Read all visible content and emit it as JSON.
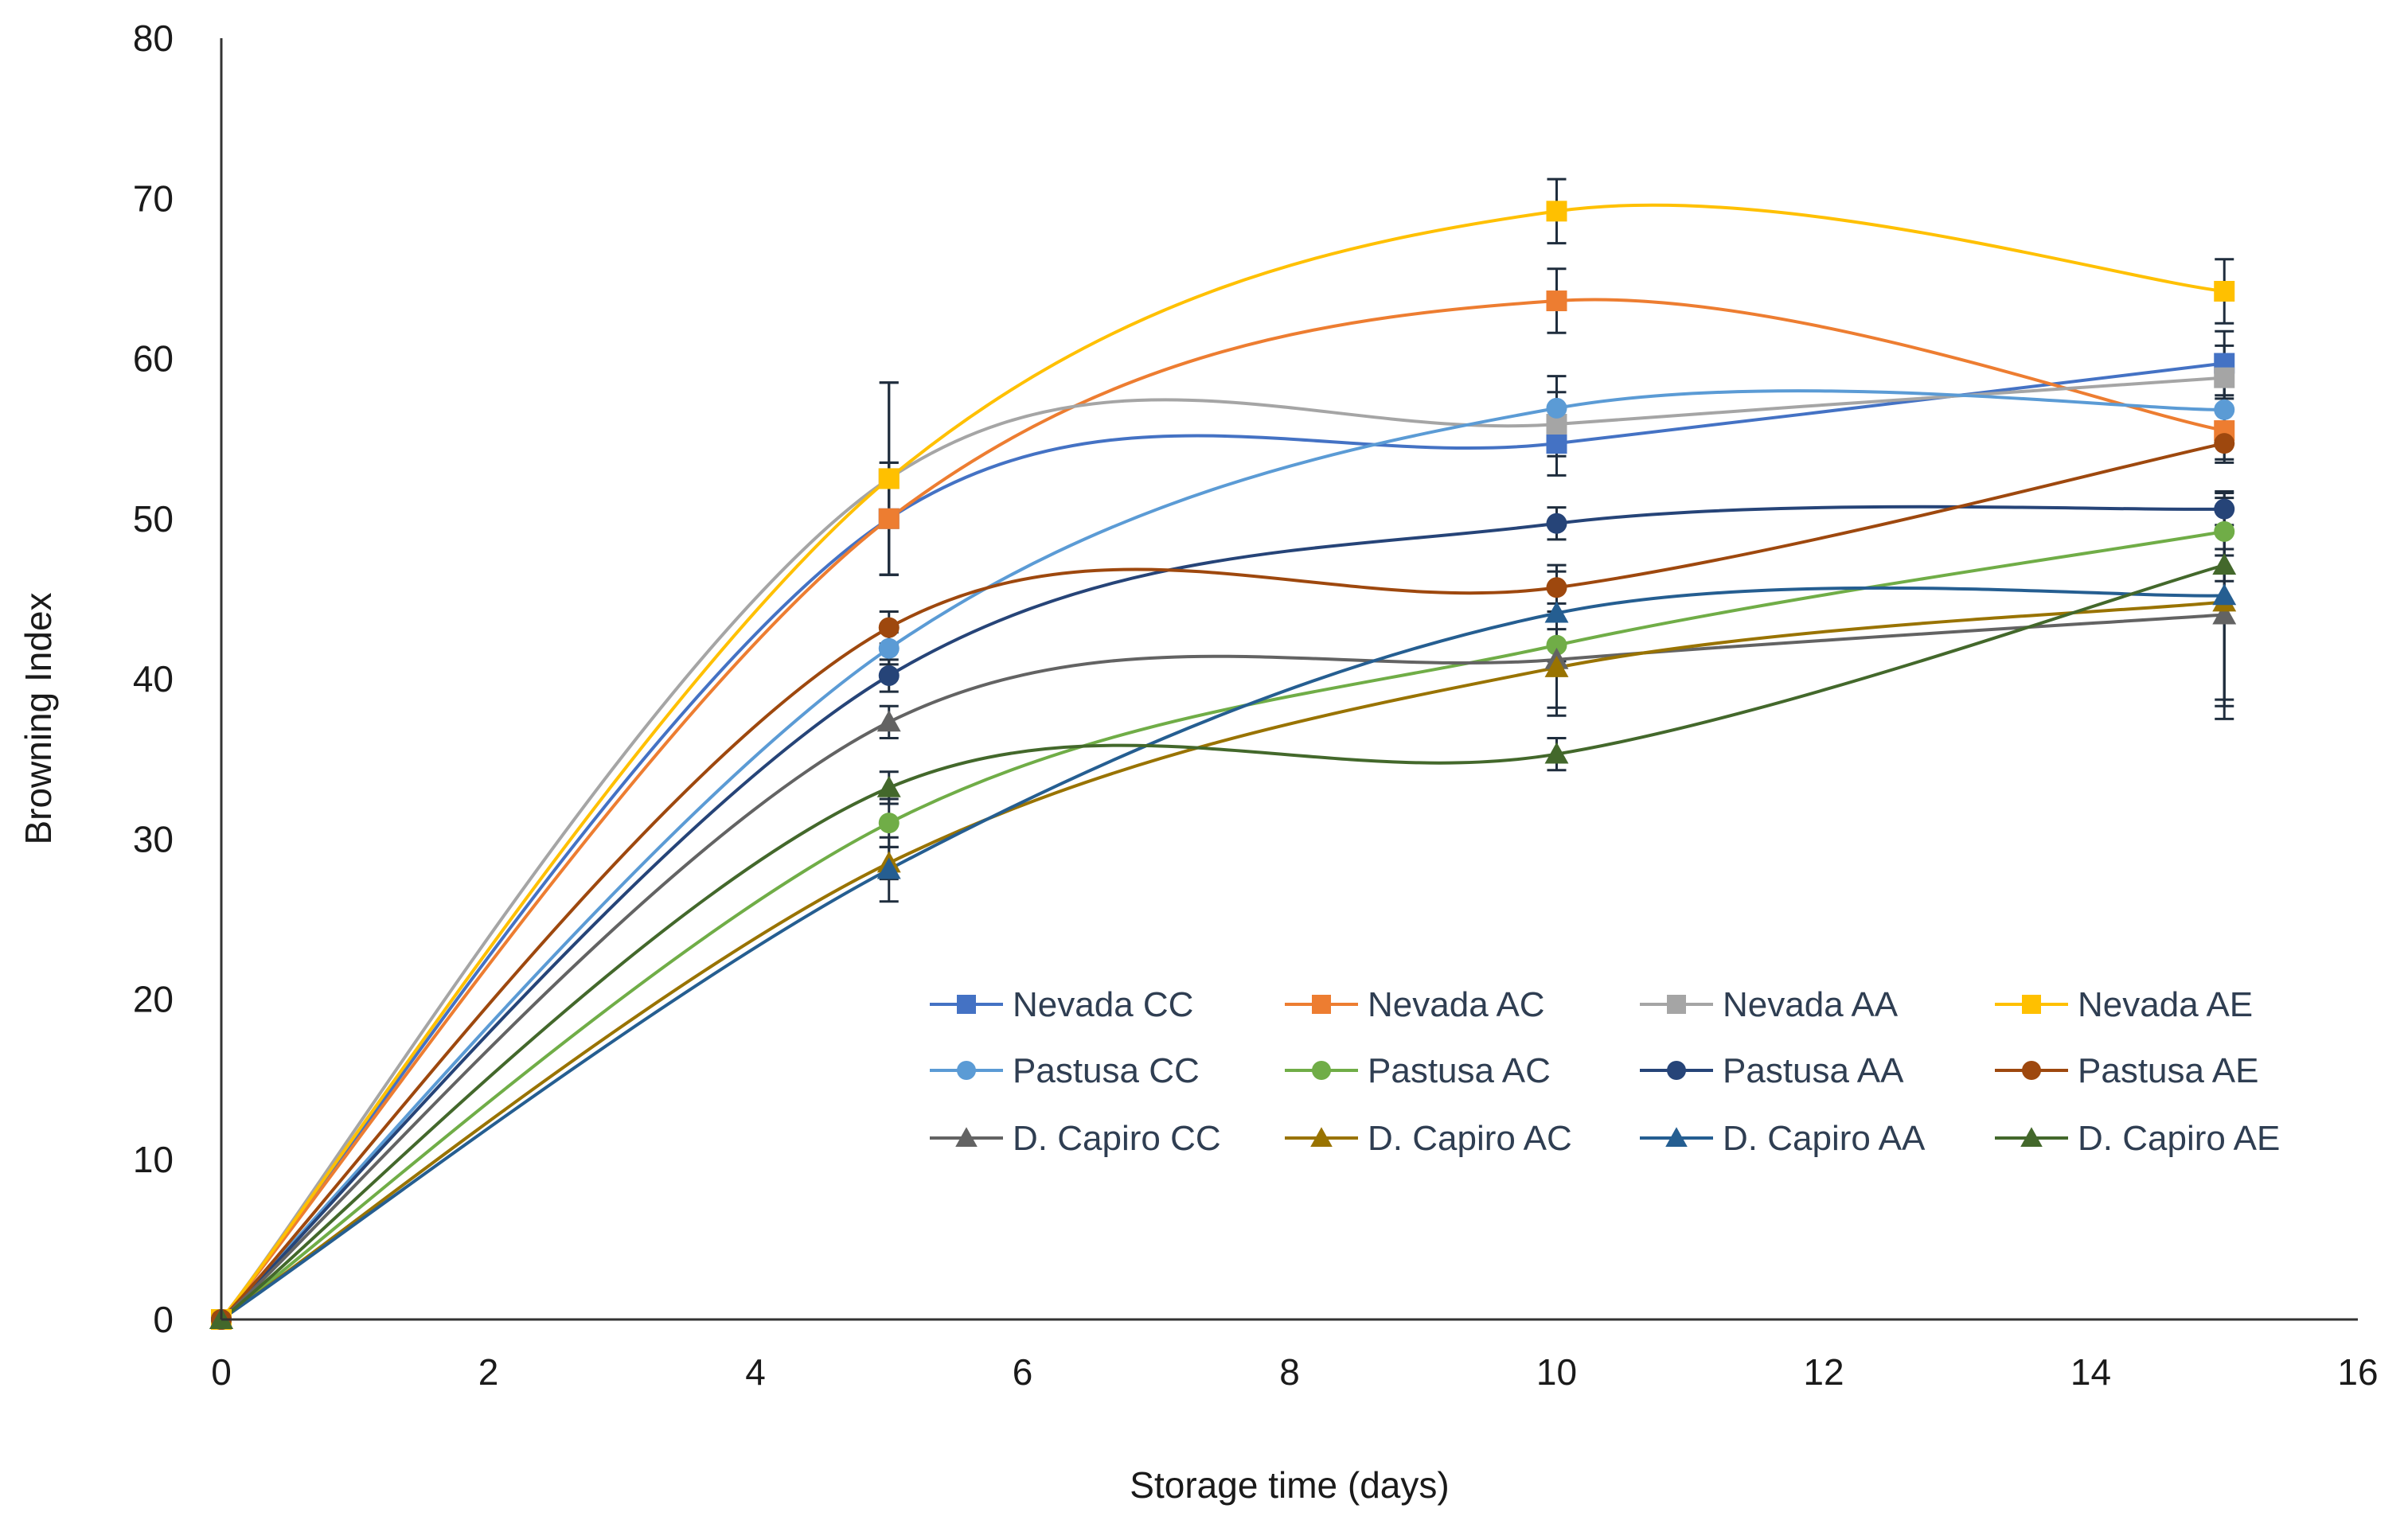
{
  "chart_data": {
    "type": "line",
    "title": "",
    "xlabel": "Storage time (days)",
    "ylabel": "Browning Index",
    "xlim": [
      0,
      16
    ],
    "ylim": [
      0,
      80
    ],
    "xticks": [
      0,
      2,
      4,
      6,
      8,
      10,
      12,
      14,
      16
    ],
    "yticks": [
      0,
      10,
      20,
      30,
      40,
      50,
      60,
      70,
      80
    ],
    "grid": false,
    "smooth": true,
    "legend_position": "bottom-right",
    "x": [
      0,
      5,
      10,
      15
    ],
    "series": [
      {
        "name": "Nevada CC",
        "color": "#4472C4",
        "marker": "square",
        "values": [
          0,
          50.0,
          54.7,
          59.7
        ],
        "errors": [
          0,
          3.5,
          2.0,
          2.0
        ]
      },
      {
        "name": "Nevada AC",
        "color": "#ED7D31",
        "marker": "square",
        "values": [
          0,
          50.0,
          63.6,
          55.5
        ],
        "errors": [
          0,
          3.5,
          2.0,
          2.0
        ]
      },
      {
        "name": "Nevada AA",
        "color": "#A5A5A5",
        "marker": "square",
        "values": [
          0,
          52.5,
          55.9,
          58.8
        ],
        "errors": [
          0,
          6.0,
          2.0,
          2.0
        ]
      },
      {
        "name": "Nevada AE",
        "color": "#FFC000",
        "marker": "square",
        "values": [
          0,
          52.5,
          69.2,
          64.2
        ],
        "errors": [
          0,
          6.0,
          2.0,
          2.0
        ]
      },
      {
        "name": "Pastusa CC",
        "color": "#5B9BD5",
        "marker": "circle",
        "values": [
          0,
          41.9,
          56.9,
          56.8
        ],
        "errors": [
          0,
          1.0,
          2.0,
          2.0
        ]
      },
      {
        "name": "Pastusa AC",
        "color": "#70AD47",
        "marker": "circle",
        "values": [
          0,
          31.0,
          42.1,
          49.2
        ],
        "errors": [
          0,
          1.5,
          1.0,
          1.5
        ]
      },
      {
        "name": "Pastusa AA",
        "color": "#264478",
        "marker": "circle",
        "values": [
          0,
          40.2,
          49.7,
          50.6
        ],
        "errors": [
          0,
          1.0,
          1.0,
          1.0
        ]
      },
      {
        "name": "Pastusa AE",
        "color": "#9E480E",
        "marker": "circle",
        "values": [
          0,
          43.2,
          45.7,
          54.7
        ],
        "errors": [
          0,
          1.0,
          1.0,
          1.0
        ]
      },
      {
        "name": "D. Capiro CC",
        "color": "#636363",
        "marker": "triangle",
        "values": [
          0,
          37.3,
          41.2,
          44.0
        ],
        "errors": [
          0,
          1.0,
          3.0,
          6.5
        ]
      },
      {
        "name": "D. Capiro AC",
        "color": "#997300",
        "marker": "triangle",
        "values": [
          0,
          28.5,
          40.7,
          44.8
        ],
        "errors": [
          0,
          1.0,
          3.0,
          6.5
        ]
      },
      {
        "name": "D. Capiro AA",
        "color": "#255E91",
        "marker": "triangle",
        "values": [
          0,
          28.1,
          44.1,
          45.2
        ],
        "errors": [
          0,
          2.0,
          3.0,
          6.5
        ]
      },
      {
        "name": "D. Capiro AE",
        "color": "#43682B",
        "marker": "triangle",
        "values": [
          0,
          33.2,
          35.3,
          47.1
        ],
        "errors": [
          0,
          1.0,
          1.0,
          1.0
        ]
      }
    ]
  }
}
